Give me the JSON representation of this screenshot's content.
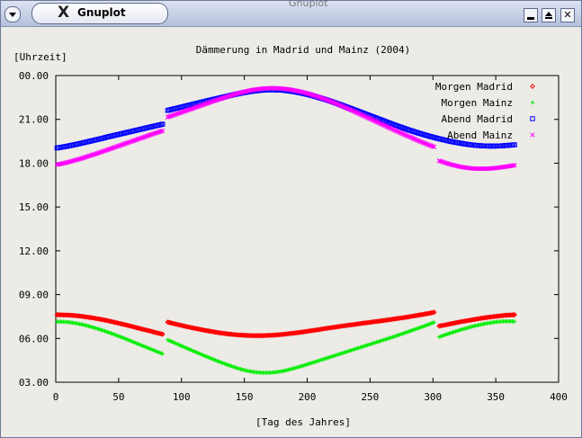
{
  "window": {
    "title": "Gnuplot",
    "background_title": "Gnuplot",
    "logo_icon": "x-logo-icon",
    "close_glyph": "✕"
  },
  "chart_data": {
    "type": "scatter",
    "title": "Dämmerung in Madrid und Mainz (2004)",
    "xlabel": "[Tag des Jahres]",
    "ylabel": "[Uhrzeit]",
    "xlim": [
      0,
      400
    ],
    "ylim": [
      3,
      24
    ],
    "xticks": [
      "0",
      "50",
      "100",
      "150",
      "200",
      "250",
      "300",
      "350",
      "400"
    ],
    "yticks": [
      "03.00",
      "06.00",
      "09.00",
      "12.00",
      "15.00",
      "18.00",
      "21.00",
      "00.00"
    ],
    "grid": false,
    "legend_position": "top-right",
    "sample_step_days": 4,
    "series": [
      {
        "name": "Morgen Madrid",
        "marker": "diamond",
        "color": "#ff0000",
        "x": [
          1,
          5,
          9,
          13,
          17,
          21,
          25,
          29,
          33,
          37,
          41,
          45,
          49,
          53,
          57,
          61,
          65,
          69,
          73,
          77,
          81,
          85,
          89,
          93,
          97,
          101,
          105,
          109,
          113,
          117,
          121,
          125,
          129,
          133,
          137,
          141,
          145,
          149,
          153,
          157,
          161,
          165,
          169,
          173,
          177,
          181,
          185,
          189,
          193,
          197,
          201,
          205,
          209,
          213,
          217,
          221,
          225,
          229,
          233,
          237,
          241,
          245,
          249,
          253,
          257,
          261,
          265,
          269,
          273,
          277,
          281,
          285,
          289,
          293,
          297,
          301,
          305,
          309,
          313,
          317,
          321,
          325,
          329,
          333,
          337,
          341,
          345,
          349,
          353,
          357,
          361,
          365
        ],
        "y": [
          7.62,
          7.61,
          7.6,
          7.58,
          7.55,
          7.51,
          7.46,
          7.41,
          7.35,
          7.29,
          7.22,
          7.14,
          7.06,
          6.98,
          6.9,
          6.81,
          6.72,
          6.63,
          6.55,
          6.46,
          6.37,
          6.29,
          7.12,
          7.03,
          6.95,
          6.87,
          6.79,
          6.72,
          6.65,
          6.58,
          6.52,
          6.46,
          6.4,
          6.35,
          6.31,
          6.27,
          6.24,
          6.22,
          6.2,
          6.19,
          6.19,
          6.19,
          6.21,
          6.22,
          6.25,
          6.28,
          6.32,
          6.36,
          6.4,
          6.45,
          6.5,
          6.55,
          6.6,
          6.66,
          6.71,
          6.76,
          6.81,
          6.86,
          6.91,
          6.95,
          7.0,
          7.05,
          7.09,
          7.14,
          7.18,
          7.23,
          7.28,
          7.33,
          7.38,
          7.43,
          7.48,
          7.54,
          7.6,
          7.66,
          7.72,
          7.79,
          6.85,
          6.91,
          6.98,
          7.05,
          7.12,
          7.18,
          7.24,
          7.3,
          7.36,
          7.41,
          7.46,
          7.5,
          7.54,
          7.58,
          7.6,
          7.62
        ]
      },
      {
        "name": "Morgen Mainz",
        "marker": "plus",
        "color": "#00ee00",
        "x": [
          1,
          5,
          9,
          13,
          17,
          21,
          25,
          29,
          33,
          37,
          41,
          45,
          49,
          53,
          57,
          61,
          65,
          69,
          73,
          77,
          81,
          85,
          89,
          93,
          97,
          101,
          105,
          109,
          113,
          117,
          121,
          125,
          129,
          133,
          137,
          141,
          145,
          149,
          153,
          157,
          161,
          165,
          169,
          173,
          177,
          181,
          185,
          189,
          193,
          197,
          201,
          205,
          209,
          213,
          217,
          221,
          225,
          229,
          233,
          237,
          241,
          245,
          249,
          253,
          257,
          261,
          265,
          269,
          273,
          277,
          281,
          285,
          289,
          293,
          297,
          301,
          305,
          309,
          313,
          317,
          321,
          325,
          329,
          333,
          337,
          341,
          345,
          349,
          353,
          357,
          361,
          365
        ],
        "y": [
          7.15,
          7.14,
          7.12,
          7.08,
          7.02,
          6.95,
          6.87,
          6.77,
          6.67,
          6.56,
          6.44,
          6.32,
          6.19,
          6.06,
          5.92,
          5.78,
          5.64,
          5.5,
          5.36,
          5.22,
          5.08,
          4.94,
          5.9,
          5.75,
          5.6,
          5.45,
          5.3,
          5.15,
          5.01,
          4.86,
          4.72,
          4.58,
          4.44,
          4.31,
          4.18,
          4.06,
          3.95,
          3.85,
          3.77,
          3.71,
          3.67,
          3.65,
          3.65,
          3.67,
          3.71,
          3.77,
          3.85,
          3.94,
          4.04,
          4.14,
          4.25,
          4.36,
          4.47,
          4.58,
          4.69,
          4.8,
          4.91,
          5.02,
          5.13,
          5.24,
          5.35,
          5.46,
          5.57,
          5.68,
          5.79,
          5.9,
          6.01,
          6.12,
          6.24,
          6.36,
          6.48,
          6.6,
          6.72,
          6.84,
          6.97,
          7.1,
          6.1,
          6.22,
          6.34,
          6.45,
          6.56,
          6.66,
          6.76,
          6.85,
          6.93,
          7.0,
          7.06,
          7.11,
          7.15,
          7.17,
          7.17,
          7.16
        ]
      },
      {
        "name": "Abend Madrid",
        "marker": "square",
        "color": "#0000ff",
        "x": [
          1,
          5,
          9,
          13,
          17,
          21,
          25,
          29,
          33,
          37,
          41,
          45,
          49,
          53,
          57,
          61,
          65,
          69,
          73,
          77,
          81,
          85,
          89,
          93,
          97,
          101,
          105,
          109,
          113,
          117,
          121,
          125,
          129,
          133,
          137,
          141,
          145,
          149,
          153,
          157,
          161,
          165,
          169,
          173,
          177,
          181,
          185,
          189,
          193,
          197,
          201,
          205,
          209,
          213,
          217,
          221,
          225,
          229,
          233,
          237,
          241,
          245,
          249,
          253,
          257,
          261,
          265,
          269,
          273,
          277,
          281,
          285,
          289,
          293,
          297,
          301,
          305,
          309,
          313,
          317,
          321,
          325,
          329,
          333,
          337,
          341,
          345,
          349,
          353,
          357,
          361,
          365
        ],
        "y": [
          19.04,
          19.1,
          19.16,
          19.23,
          19.3,
          19.38,
          19.46,
          19.54,
          19.62,
          19.7,
          19.79,
          19.87,
          19.95,
          20.03,
          20.11,
          20.19,
          20.27,
          20.35,
          20.43,
          20.51,
          20.59,
          20.67,
          21.61,
          21.7,
          21.78,
          21.86,
          21.95,
          22.03,
          22.11,
          22.2,
          22.28,
          22.36,
          22.44,
          22.52,
          22.6,
          22.68,
          22.75,
          22.82,
          22.88,
          22.93,
          22.97,
          23.0,
          23.02,
          23.02,
          23.01,
          22.99,
          22.95,
          22.9,
          22.84,
          22.77,
          22.69,
          22.6,
          22.5,
          22.4,
          22.29,
          22.17,
          22.05,
          21.93,
          21.8,
          21.67,
          21.54,
          21.41,
          21.28,
          21.15,
          21.02,
          20.89,
          20.76,
          20.63,
          20.51,
          20.39,
          20.27,
          20.16,
          20.05,
          19.95,
          19.85,
          19.76,
          19.67,
          19.59,
          19.51,
          19.44,
          19.38,
          19.32,
          19.27,
          19.23,
          19.2,
          19.18,
          19.17,
          19.17,
          19.18,
          19.2,
          19.23,
          19.26
        ]
      },
      {
        "name": "Abend Mainz",
        "marker": "x",
        "color": "#ff00ff",
        "x": [
          1,
          5,
          9,
          13,
          17,
          21,
          25,
          29,
          33,
          37,
          41,
          45,
          49,
          53,
          57,
          61,
          65,
          69,
          73,
          77,
          81,
          85,
          89,
          93,
          97,
          101,
          105,
          109,
          113,
          117,
          121,
          125,
          129,
          133,
          137,
          141,
          145,
          149,
          153,
          157,
          161,
          165,
          169,
          173,
          177,
          181,
          185,
          189,
          193,
          197,
          201,
          205,
          209,
          213,
          217,
          221,
          225,
          229,
          233,
          237,
          241,
          245,
          249,
          253,
          257,
          261,
          265,
          269,
          273,
          277,
          281,
          285,
          289,
          293,
          297,
          301,
          305,
          309,
          313,
          317,
          321,
          325,
          329,
          333,
          337,
          341,
          345,
          349,
          353,
          357,
          361,
          365
        ],
        "y": [
          17.9,
          17.97,
          18.05,
          18.14,
          18.24,
          18.34,
          18.45,
          18.56,
          18.67,
          18.79,
          18.91,
          19.03,
          19.15,
          19.27,
          19.39,
          19.51,
          19.63,
          19.75,
          19.87,
          19.99,
          20.11,
          20.22,
          21.15,
          21.27,
          21.39,
          21.51,
          21.63,
          21.75,
          21.87,
          21.99,
          22.11,
          22.23,
          22.35,
          22.46,
          22.57,
          22.68,
          22.78,
          22.87,
          22.95,
          23.02,
          23.07,
          23.11,
          23.13,
          23.14,
          23.13,
          23.1,
          23.06,
          23.0,
          22.93,
          22.85,
          22.76,
          22.65,
          22.54,
          22.42,
          22.29,
          22.15,
          22.01,
          21.86,
          21.71,
          21.56,
          21.4,
          21.24,
          21.08,
          20.92,
          20.76,
          20.6,
          20.44,
          20.28,
          20.12,
          19.97,
          19.82,
          19.67,
          19.52,
          19.38,
          19.24,
          19.11,
          18.17,
          18.05,
          17.94,
          17.85,
          17.77,
          17.71,
          17.66,
          17.63,
          17.62,
          17.62,
          17.63,
          17.66,
          17.7,
          17.75,
          17.8,
          17.86
        ]
      }
    ]
  }
}
